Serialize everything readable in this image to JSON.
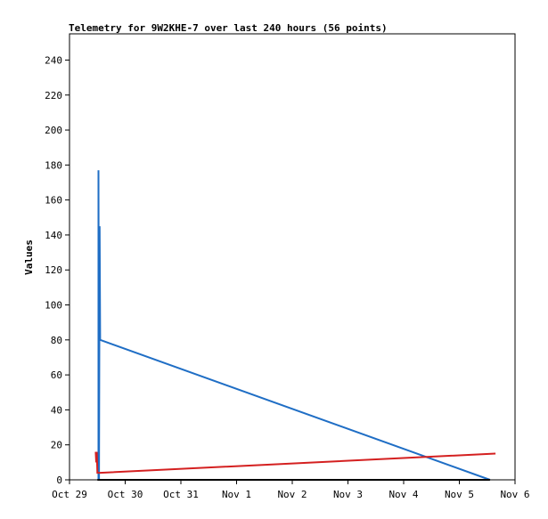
{
  "chart_data": {
    "type": "line",
    "title": "Telemetry for 9W2KHE-7 over last 240 hours (56 points)",
    "xlabel": "",
    "ylabel": "Values",
    "xlim": [
      0,
      8
    ],
    "ylim": [
      0,
      255
    ],
    "x_tick_labels": [
      "Oct 29",
      "Oct 30",
      "Oct 31",
      "Nov 1",
      "Nov 2",
      "Nov 3",
      "Nov 4",
      "Nov 5",
      "Nov 6"
    ],
    "y_ticks": [
      0,
      20,
      40,
      60,
      80,
      100,
      120,
      140,
      160,
      180,
      200,
      220,
      240
    ],
    "grid": false,
    "legend": "none",
    "series": [
      {
        "color": "#1f6ec5",
        "points": [
          [
            0.52,
            0
          ],
          [
            0.52,
            177
          ],
          [
            0.53,
            0
          ],
          [
            0.54,
            145
          ],
          [
            0.55,
            80
          ],
          [
            7.55,
            0
          ]
        ]
      },
      {
        "color": "#d42020",
        "points": [
          [
            0.47,
            16
          ],
          [
            0.48,
            10
          ],
          [
            0.49,
            16
          ],
          [
            0.5,
            4
          ],
          [
            0.55,
            4
          ],
          [
            7.65,
            15
          ]
        ]
      },
      {
        "color": "#000000",
        "points": [
          [
            0.5,
            0
          ],
          [
            7.55,
            0
          ]
        ]
      }
    ]
  }
}
